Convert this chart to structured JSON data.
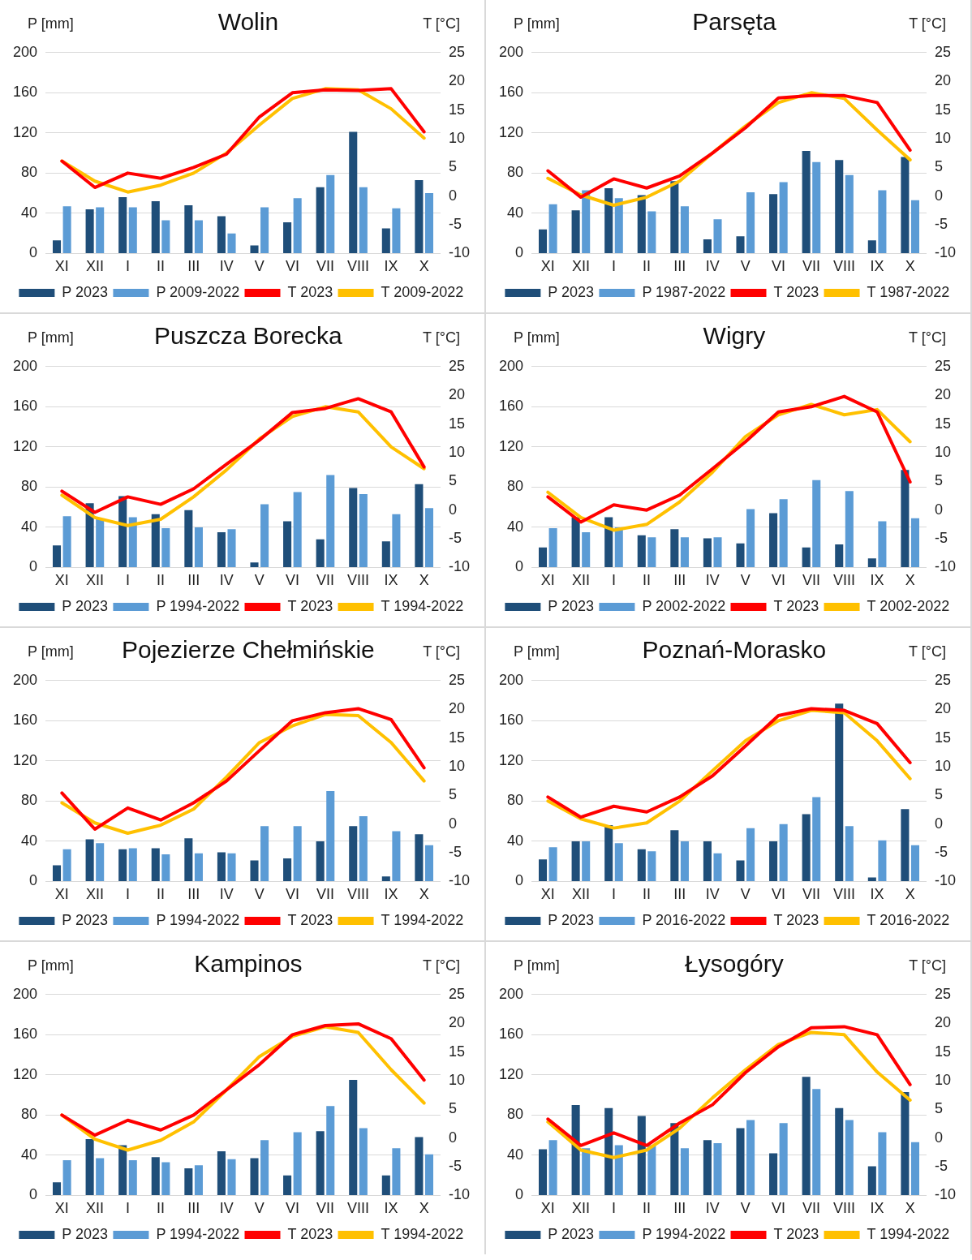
{
  "chart_data": [
    {
      "type": "bar",
      "title": "Wolin",
      "ylabel": "P [mm]",
      "y2label": "T [°C]",
      "categories": [
        "XI",
        "XII",
        "I",
        "II",
        "III",
        "IV",
        "V",
        "VI",
        "VII",
        "VIII",
        "IX",
        "X"
      ],
      "ylim": [
        0,
        200
      ],
      "yticks": [
        0,
        40,
        80,
        120,
        160,
        200
      ],
      "y2lim": [
        -10,
        25
      ],
      "y2ticks": [
        -10,
        -5,
        0,
        5,
        10,
        15,
        20,
        25
      ],
      "grid": "y",
      "legend": "bottom",
      "marker": "none",
      "line_style": "solid",
      "series": [
        {
          "name": "P 2023",
          "color": "#1f4e79",
          "values": [
            13,
            44,
            56,
            52,
            48,
            37,
            8,
            31,
            66,
            121,
            25,
            73
          ]
        },
        {
          "name": "P 2009-2022",
          "color": "#5b9bd5",
          "values": [
            47,
            46,
            46,
            33,
            33,
            20,
            46,
            55,
            78,
            66,
            45,
            60
          ]
        },
        {
          "name": "T 2023",
          "type": "line",
          "axis": "y2",
          "color": "#ff0000",
          "values": [
            6.1,
            1.5,
            4,
            3.1,
            5,
            7.3,
            13.8,
            18,
            18.5,
            18.4,
            18.7,
            11.2
          ]
        },
        {
          "name": "T 2009-2022",
          "type": "line",
          "axis": "y2",
          "color": "#ffc000",
          "values": [
            6.1,
            2.6,
            0.7,
            1.9,
            4,
            7.5,
            12.4,
            17,
            18.7,
            18.5,
            15.2,
            10.1
          ]
        }
      ]
    },
    {
      "type": "bar",
      "title": "Parsęta",
      "ylabel": "P [mm]",
      "y2label": "T [°C]",
      "categories": [
        "XI",
        "XII",
        "I",
        "II",
        "III",
        "IV",
        "V",
        "VI",
        "VII",
        "VIII",
        "IX",
        "X"
      ],
      "ylim": [
        0,
        200
      ],
      "yticks": [
        0,
        40,
        80,
        120,
        160,
        200
      ],
      "y2lim": [
        -10,
        25
      ],
      "y2ticks": [
        -10,
        -5,
        0,
        5,
        10,
        15,
        20,
        25
      ],
      "grid": "y",
      "legend": "bottom",
      "marker": "none",
      "line_style": "solid",
      "series": [
        {
          "name": "P 2023",
          "color": "#1f4e79",
          "values": [
            24,
            43,
            65,
            58,
            72,
            14,
            17,
            59,
            102,
            93,
            13,
            96
          ]
        },
        {
          "name": "P 1987-2022",
          "color": "#5b9bd5",
          "values": [
            49,
            63,
            55,
            42,
            47,
            34,
            61,
            71,
            91,
            78,
            63,
            53
          ]
        },
        {
          "name": "T 2023",
          "type": "line",
          "axis": "y2",
          "color": "#ff0000",
          "values": [
            4.4,
            -0.2,
            3,
            1.4,
            3.5,
            7.5,
            11.9,
            17.1,
            17.5,
            17.5,
            16.3,
            8
          ]
        },
        {
          "name": "T 1987-2022",
          "type": "line",
          "axis": "y2",
          "color": "#ffc000",
          "values": [
            3.1,
            0.2,
            -1.6,
            -0.2,
            2.6,
            7.5,
            12.2,
            16.3,
            18,
            17,
            11.5,
            6.3
          ]
        }
      ]
    },
    {
      "type": "bar",
      "title": "Puszcza Borecka",
      "ylabel": "P [mm]",
      "y2label": "T [°C]",
      "categories": [
        "XI",
        "XII",
        "I",
        "II",
        "III",
        "IV",
        "V",
        "VI",
        "VII",
        "VIII",
        "IX",
        "X"
      ],
      "ylim": [
        0,
        200
      ],
      "yticks": [
        0,
        40,
        80,
        120,
        160,
        200
      ],
      "y2lim": [
        -10,
        25
      ],
      "y2ticks": [
        -10,
        -5,
        0,
        5,
        10,
        15,
        20,
        25
      ],
      "grid": "y",
      "legend": "bottom",
      "marker": "none",
      "line_style": "solid",
      "series": [
        {
          "name": "P 2023",
          "color": "#1f4e79",
          "values": [
            22,
            64,
            71,
            53,
            57,
            35,
            5,
            46,
            28,
            79,
            26,
            83
          ]
        },
        {
          "name": "P 1994-2022",
          "color": "#5b9bd5",
          "values": [
            51,
            48,
            50,
            39,
            40,
            38,
            63,
            75,
            92,
            73,
            53,
            59
          ]
        },
        {
          "name": "T 2023",
          "type": "line",
          "axis": "y2",
          "color": "#ff0000",
          "values": [
            3.3,
            -0.4,
            2.3,
            1,
            3.7,
            8,
            12.2,
            17,
            17.7,
            19.4,
            17.1,
            7.5
          ]
        },
        {
          "name": "T 1994-2022",
          "type": "line",
          "axis": "y2",
          "color": "#ffc000",
          "values": [
            2.6,
            -1.3,
            -2.7,
            -1.6,
            2.3,
            7,
            12.4,
            16.3,
            18,
            17.1,
            11,
            7.2
          ]
        }
      ]
    },
    {
      "type": "bar",
      "title": "Wigry",
      "ylabel": "P [mm]",
      "y2label": "T [°C]",
      "categories": [
        "XI",
        "XII",
        "I",
        "II",
        "III",
        "IV",
        "V",
        "VI",
        "VII",
        "VIII",
        "IX",
        "X"
      ],
      "ylim": [
        0,
        200
      ],
      "yticks": [
        0,
        40,
        80,
        120,
        160,
        200
      ],
      "y2lim": [
        -10,
        25
      ],
      "y2ticks": [
        -10,
        -5,
        0,
        5,
        10,
        15,
        20,
        25
      ],
      "grid": "y",
      "legend": "bottom",
      "marker": "none",
      "line_style": "solid",
      "series": [
        {
          "name": "P 2023",
          "color": "#1f4e79",
          "values": [
            20,
            50,
            50,
            32,
            38,
            29,
            24,
            54,
            20,
            23,
            9,
            97
          ]
        },
        {
          "name": "P 2002-2022",
          "color": "#5b9bd5",
          "values": [
            39,
            35,
            40,
            30,
            30,
            30,
            58,
            68,
            87,
            76,
            46,
            49
          ]
        },
        {
          "name": "T 2023",
          "type": "line",
          "axis": "y2",
          "color": "#ff0000",
          "values": [
            2.3,
            -2.1,
            0.9,
            0,
            2.6,
            7.2,
            11.9,
            17.1,
            18,
            19.8,
            17.1,
            4.9
          ]
        },
        {
          "name": "T 2002-2022",
          "type": "line",
          "axis": "y2",
          "color": "#ffc000",
          "values": [
            3.1,
            -1.3,
            -3.5,
            -2.5,
            1.4,
            6.6,
            12.8,
            16.6,
            18.4,
            16.6,
            17.5,
            11.9
          ]
        }
      ]
    },
    {
      "type": "bar",
      "title": "Pojezierze Chełmińskie",
      "ylabel": "P [mm]",
      "y2label": "T [°C]",
      "categories": [
        "XI",
        "XII",
        "I",
        "II",
        "III",
        "IV",
        "V",
        "VI",
        "VII",
        "VIII",
        "IX",
        "X"
      ],
      "ylim": [
        0,
        200
      ],
      "yticks": [
        0,
        40,
        80,
        120,
        160,
        200
      ],
      "y2lim": [
        -10,
        25
      ],
      "y2ticks": [
        -10,
        -5,
        0,
        5,
        10,
        15,
        20,
        25
      ],
      "grid": "y",
      "legend": "bottom",
      "marker": "none",
      "line_style": "solid",
      "series": [
        {
          "name": "P 2023",
          "color": "#1f4e79",
          "values": [
            16,
            42,
            32,
            33,
            43,
            29,
            21,
            23,
            40,
            55,
            5,
            47
          ]
        },
        {
          "name": "P 1994-2022",
          "color": "#5b9bd5",
          "values": [
            32,
            38,
            33,
            27,
            28,
            28,
            55,
            55,
            90,
            65,
            50,
            36
          ]
        },
        {
          "name": "T 2023",
          "type": "line",
          "axis": "y2",
          "color": "#ff0000",
          "values": [
            5.4,
            -0.9,
            2.8,
            0.7,
            3.7,
            7.5,
            12.8,
            18,
            19.4,
            20.1,
            18.2,
            9.8
          ]
        },
        {
          "name": "T 1994-2022",
          "type": "line",
          "axis": "y2",
          "color": "#ffc000",
          "values": [
            3.7,
            0.2,
            -1.6,
            -0.2,
            2.6,
            8.2,
            14.2,
            17.1,
            19.1,
            18.9,
            14.2,
            7.5
          ]
        }
      ]
    },
    {
      "type": "bar",
      "title": "Poznań-Morasko",
      "ylabel": "P [mm]",
      "y2label": "T [°C]",
      "categories": [
        "XI",
        "XII",
        "I",
        "II",
        "III",
        "IV",
        "V",
        "VI",
        "VII",
        "VIII",
        "IX",
        "X"
      ],
      "ylim": [
        0,
        200
      ],
      "yticks": [
        0,
        40,
        80,
        120,
        160,
        200
      ],
      "y2lim": [
        -10,
        25
      ],
      "y2ticks": [
        -10,
        -5,
        0,
        5,
        10,
        15,
        20,
        25
      ],
      "grid": "y",
      "legend": "bottom",
      "marker": "none",
      "line_style": "solid",
      "series": [
        {
          "name": "P 2023",
          "color": "#1f4e79",
          "values": [
            22,
            40,
            56,
            32,
            51,
            40,
            21,
            40,
            67,
            177,
            4,
            72
          ]
        },
        {
          "name": "P 2016-2022",
          "color": "#5b9bd5",
          "values": [
            34,
            40,
            38,
            30,
            40,
            28,
            53,
            57,
            84,
            55,
            41,
            36
          ]
        },
        {
          "name": "T 2023",
          "type": "line",
          "axis": "y2",
          "color": "#ff0000",
          "values": [
            4.7,
            1.2,
            3.1,
            2.1,
            4.7,
            8.4,
            13.6,
            18.9,
            20.1,
            19.8,
            17.5,
            10.7
          ]
        },
        {
          "name": "T 2016-2022",
          "type": "line",
          "axis": "y2",
          "color": "#ffc000",
          "values": [
            4,
            0.9,
            -0.7,
            0.2,
            4,
            9.3,
            14.5,
            18,
            19.8,
            19.4,
            14.5,
            7.9
          ]
        }
      ]
    },
    {
      "type": "bar",
      "title": "Kampinos",
      "ylabel": "P [mm]",
      "y2label": "T [°C]",
      "categories": [
        "XI",
        "XII",
        "I",
        "II",
        "III",
        "IV",
        "V",
        "VI",
        "VII",
        "VIII",
        "IX",
        "X"
      ],
      "ylim": [
        0,
        200
      ],
      "yticks": [
        0,
        40,
        80,
        120,
        160,
        200
      ],
      "y2lim": [
        -10,
        25
      ],
      "y2ticks": [
        -10,
        -5,
        0,
        5,
        10,
        15,
        20,
        25
      ],
      "grid": "y",
      "legend": "bottom",
      "marker": "none",
      "line_style": "solid",
      "series": [
        {
          "name": "P 2023",
          "color": "#1f4e79",
          "values": [
            13,
            56,
            50,
            38,
            27,
            44,
            37,
            20,
            64,
            115,
            20,
            58
          ]
        },
        {
          "name": "P 1994-2022",
          "color": "#5b9bd5",
          "values": [
            35,
            37,
            35,
            33,
            30,
            36,
            55,
            63,
            89,
            67,
            47,
            41
          ]
        },
        {
          "name": "T 2023",
          "type": "line",
          "axis": "y2",
          "color": "#ff0000",
          "values": [
            4,
            0.5,
            3.1,
            1.4,
            4,
            8.4,
            12.8,
            18,
            19.6,
            19.9,
            17.3,
            10.1
          ]
        },
        {
          "name": "T 1994-2022",
          "type": "line",
          "axis": "y2",
          "color": "#ffc000",
          "values": [
            4,
            -0.2,
            -2.1,
            -0.4,
            2.8,
            8.4,
            14.2,
            17.7,
            19.4,
            18.4,
            11.9,
            6.1
          ]
        }
      ]
    },
    {
      "type": "bar",
      "title": "Łysogóry",
      "ylabel": "P [mm]",
      "y2label": "T [°C]",
      "categories": [
        "XI",
        "XII",
        "I",
        "II",
        "III",
        "IV",
        "V",
        "VI",
        "VII",
        "VIII",
        "IX",
        "X"
      ],
      "ylim": [
        0,
        200
      ],
      "yticks": [
        0,
        40,
        80,
        120,
        160,
        200
      ],
      "y2lim": [
        -10,
        25
      ],
      "y2ticks": [
        -10,
        -5,
        0,
        5,
        10,
        15,
        20,
        25
      ],
      "grid": "y",
      "legend": "bottom",
      "marker": "none",
      "line_style": "solid",
      "series": [
        {
          "name": "P 2023",
          "color": "#1f4e79",
          "values": [
            46,
            90,
            87,
            79,
            72,
            55,
            67,
            42,
            118,
            87,
            29,
            103
          ]
        },
        {
          "name": "P 1994-2022",
          "color": "#5b9bd5",
          "values": [
            55,
            47,
            50,
            50,
            47,
            52,
            75,
            72,
            106,
            75,
            63,
            53
          ]
        },
        {
          "name": "T 2023",
          "type": "line",
          "axis": "y2",
          "color": "#ff0000",
          "values": [
            3.3,
            -1.3,
            0.9,
            -1.3,
            2.6,
            5.8,
            11.4,
            15.9,
            19.2,
            19.4,
            18,
            9.3
          ]
        },
        {
          "name": "T 1994-2022",
          "type": "line",
          "axis": "y2",
          "color": "#ffc000",
          "values": [
            2.8,
            -2.1,
            -3.4,
            -2.1,
            1.7,
            7,
            11.9,
            16.3,
            18.4,
            18,
            11.5,
            6.6
          ]
        }
      ]
    }
  ]
}
